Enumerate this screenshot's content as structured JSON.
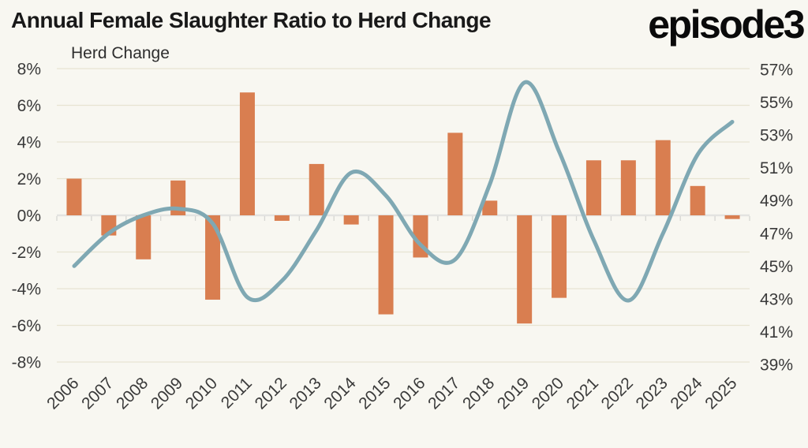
{
  "header": {
    "title": "Annual Female Slaughter Ratio to Herd Change",
    "logo": "episode3"
  },
  "chart_data": {
    "type": "bar+line dual-axis combo",
    "series_label": "Herd Change",
    "categories": [
      "2006",
      "2007",
      "2008",
      "2009",
      "2010",
      "2011",
      "2012",
      "2013",
      "2014",
      "2015",
      "2016",
      "2017",
      "2018",
      "2019",
      "2020",
      "2021",
      "2022",
      "2023",
      "2024",
      "2025"
    ],
    "series": [
      {
        "name": "Herd Change",
        "type": "bar",
        "axis": "left",
        "unit": "%",
        "color": "#d97e50",
        "values": [
          2.0,
          -1.1,
          -2.4,
          1.9,
          -4.6,
          6.7,
          -0.3,
          2.8,
          -0.5,
          -5.4,
          -2.3,
          4.5,
          0.8,
          -5.9,
          -4.5,
          3.0,
          3.0,
          4.1,
          1.6,
          -0.2
        ]
      },
      {
        "name": "Annual Female Slaughter Ratio",
        "type": "line",
        "axis": "right",
        "unit": "%",
        "color": "#7fa8b3",
        "values": [
          45.0,
          47.0,
          48.1,
          48.5,
          47.6,
          43.1,
          44.1,
          47.2,
          50.7,
          49.3,
          46.3,
          45.4,
          50.0,
          56.2,
          52.0,
          46.6,
          42.9,
          47.0,
          51.8,
          53.8
        ]
      }
    ],
    "left_axis": {
      "ticks": [
        "8%",
        "6%",
        "4%",
        "2%",
        "0%",
        "-2%",
        "-4%",
        "-6%",
        "-8%"
      ],
      "min": -8,
      "max": 8
    },
    "right_axis": {
      "ticks": [
        "57%",
        "55%",
        "53%",
        "51%",
        "49%",
        "47%",
        "45%",
        "43%",
        "41%",
        "39%"
      ],
      "min": 39,
      "max": 57
    },
    "grid": true,
    "legend_position": "top-left"
  },
  "colors": {
    "background": "#f8f7f1",
    "bar": "#d97e50",
    "line": "#7fa8b3",
    "grid": "#e7e4d2",
    "zero_line": "#e3e3e1",
    "zero_tick": "#d6d6d2",
    "axis_text": "#3a3a3a"
  }
}
